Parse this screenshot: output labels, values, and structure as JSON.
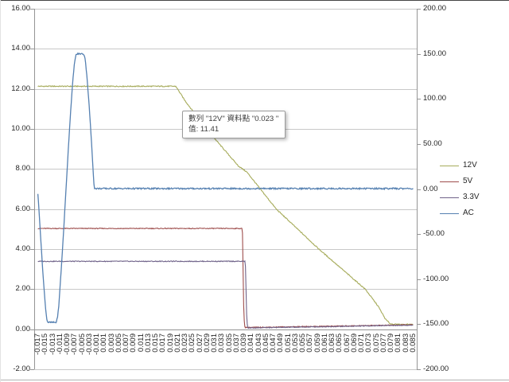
{
  "tooltip": {
    "series": "12V",
    "point": "0.023",
    "value": "11.41",
    "line1": "數列 \"12V\" 資料點 \"0.023 \"",
    "line2": "值: 11.41"
  },
  "chart_data": {
    "type": "line",
    "title": "",
    "grid": "horizontal",
    "legend_position": "right",
    "x_axis": {
      "min": -0.017,
      "max": 0.085,
      "step": 0.002,
      "labels": [
        "-0.017",
        "-0.015",
        "-0.013",
        "-0.011",
        "-0.009",
        "-0.007",
        "-0.005",
        "-0.003",
        "-0.001",
        "0.001",
        "0.003",
        "0.005",
        "0.007",
        "0.009",
        "0.011",
        "0.013",
        "0.015",
        "0.017",
        "0.019",
        "0.021",
        "0.023",
        "0.025",
        "0.027",
        "0.029",
        "0.031",
        "0.033",
        "0.035",
        "0.037",
        "0.039",
        "0.041",
        "0.043",
        "0.045",
        "0.047",
        "0.049",
        "0.051",
        "0.053",
        "0.055",
        "0.057",
        "0.059",
        "0.061",
        "0.063",
        "0.065",
        "0.067",
        "0.069",
        "0.071",
        "0.073",
        "0.075",
        "0.077",
        "0.079",
        "0.081",
        "0.083",
        "0.085"
      ]
    },
    "y_axis_left": {
      "min": -2,
      "max": 16,
      "step": 2,
      "labels": [
        "16.00",
        "14.00",
        "12.00",
        "10.00",
        "8.00",
        "6.00",
        "4.00",
        "2.00",
        "0.00",
        "-2.00"
      ]
    },
    "y_axis_right": {
      "min": -200,
      "max": 200,
      "step": 50,
      "labels": [
        "200.00",
        "150.00",
        "100.00",
        "50.00",
        "0.00",
        "-50.00",
        "-100.00",
        "-150.00",
        "-200.00"
      ]
    },
    "series": [
      {
        "name": "12V",
        "axis": "left",
        "color": "#a6ab5a",
        "noise": 0.025,
        "points": [
          [
            -0.017,
            12.13
          ],
          [
            0.0205,
            12.13
          ],
          [
            0.023,
            11.41
          ],
          [
            0.0288,
            10.0
          ],
          [
            0.0335,
            9.0
          ],
          [
            0.0375,
            8.15
          ],
          [
            0.0398,
            7.85
          ],
          [
            0.0478,
            6.0
          ],
          [
            0.0594,
            4.0
          ],
          [
            0.066,
            2.95
          ],
          [
            0.072,
            2.0
          ],
          [
            0.0755,
            1.15
          ],
          [
            0.0775,
            0.5
          ],
          [
            0.0788,
            0.27
          ],
          [
            0.0805,
            0.24
          ],
          [
            0.085,
            0.24
          ]
        ]
      },
      {
        "name": "5V",
        "axis": "left",
        "color": "#9e4d4c",
        "noise": 0.02,
        "points": [
          [
            -0.017,
            5.03
          ],
          [
            0.0386,
            5.03
          ],
          [
            0.039,
            0.6
          ],
          [
            0.0393,
            0.09
          ],
          [
            0.045,
            0.1
          ],
          [
            0.055,
            0.13
          ],
          [
            0.065,
            0.16
          ],
          [
            0.075,
            0.19
          ],
          [
            0.085,
            0.22
          ]
        ]
      },
      {
        "name": "3.3V",
        "axis": "left",
        "color": "#6f6289",
        "noise": 0.02,
        "points": [
          [
            -0.017,
            3.39
          ],
          [
            0.0394,
            3.39
          ],
          [
            0.0398,
            0.4
          ],
          [
            0.0401,
            0.06
          ],
          [
            0.046,
            0.08
          ],
          [
            0.056,
            0.11
          ],
          [
            0.066,
            0.14
          ],
          [
            0.076,
            0.18
          ],
          [
            0.085,
            0.2
          ]
        ]
      },
      {
        "name": "AC",
        "axis": "right",
        "color": "#5580b1",
        "noise": 0.8,
        "points": [
          [
            -0.017,
            -5
          ],
          [
            -0.0165,
            -36
          ],
          [
            -0.016,
            -70
          ],
          [
            -0.0155,
            -101
          ],
          [
            -0.015,
            -128
          ],
          [
            -0.0146,
            -144
          ],
          [
            -0.0143,
            -148
          ],
          [
            -0.012,
            -148
          ],
          [
            -0.0117,
            -143
          ],
          [
            -0.0113,
            -130
          ],
          [
            -0.011,
            -110
          ],
          [
            -0.0105,
            -80
          ],
          [
            -0.01,
            -46
          ],
          [
            -0.0095,
            -11
          ],
          [
            -0.009,
            25
          ],
          [
            -0.0085,
            60
          ],
          [
            -0.008,
            92
          ],
          [
            -0.0075,
            120
          ],
          [
            -0.007,
            142
          ],
          [
            -0.0066,
            149
          ],
          [
            -0.0062,
            150
          ],
          [
            -0.0046,
            150
          ],
          [
            -0.0042,
            146
          ],
          [
            -0.0037,
            127
          ],
          [
            -0.003,
            89
          ],
          [
            -0.0025,
            57
          ],
          [
            -0.002,
            22
          ],
          [
            -0.0017,
            2
          ],
          [
            -0.0015,
            0.5
          ],
          [
            0.085,
            0.5
          ]
        ]
      }
    ],
    "colors": {
      "gridline": "#c8c8c8",
      "axis": "#959595",
      "tick_label": "#262626"
    }
  }
}
